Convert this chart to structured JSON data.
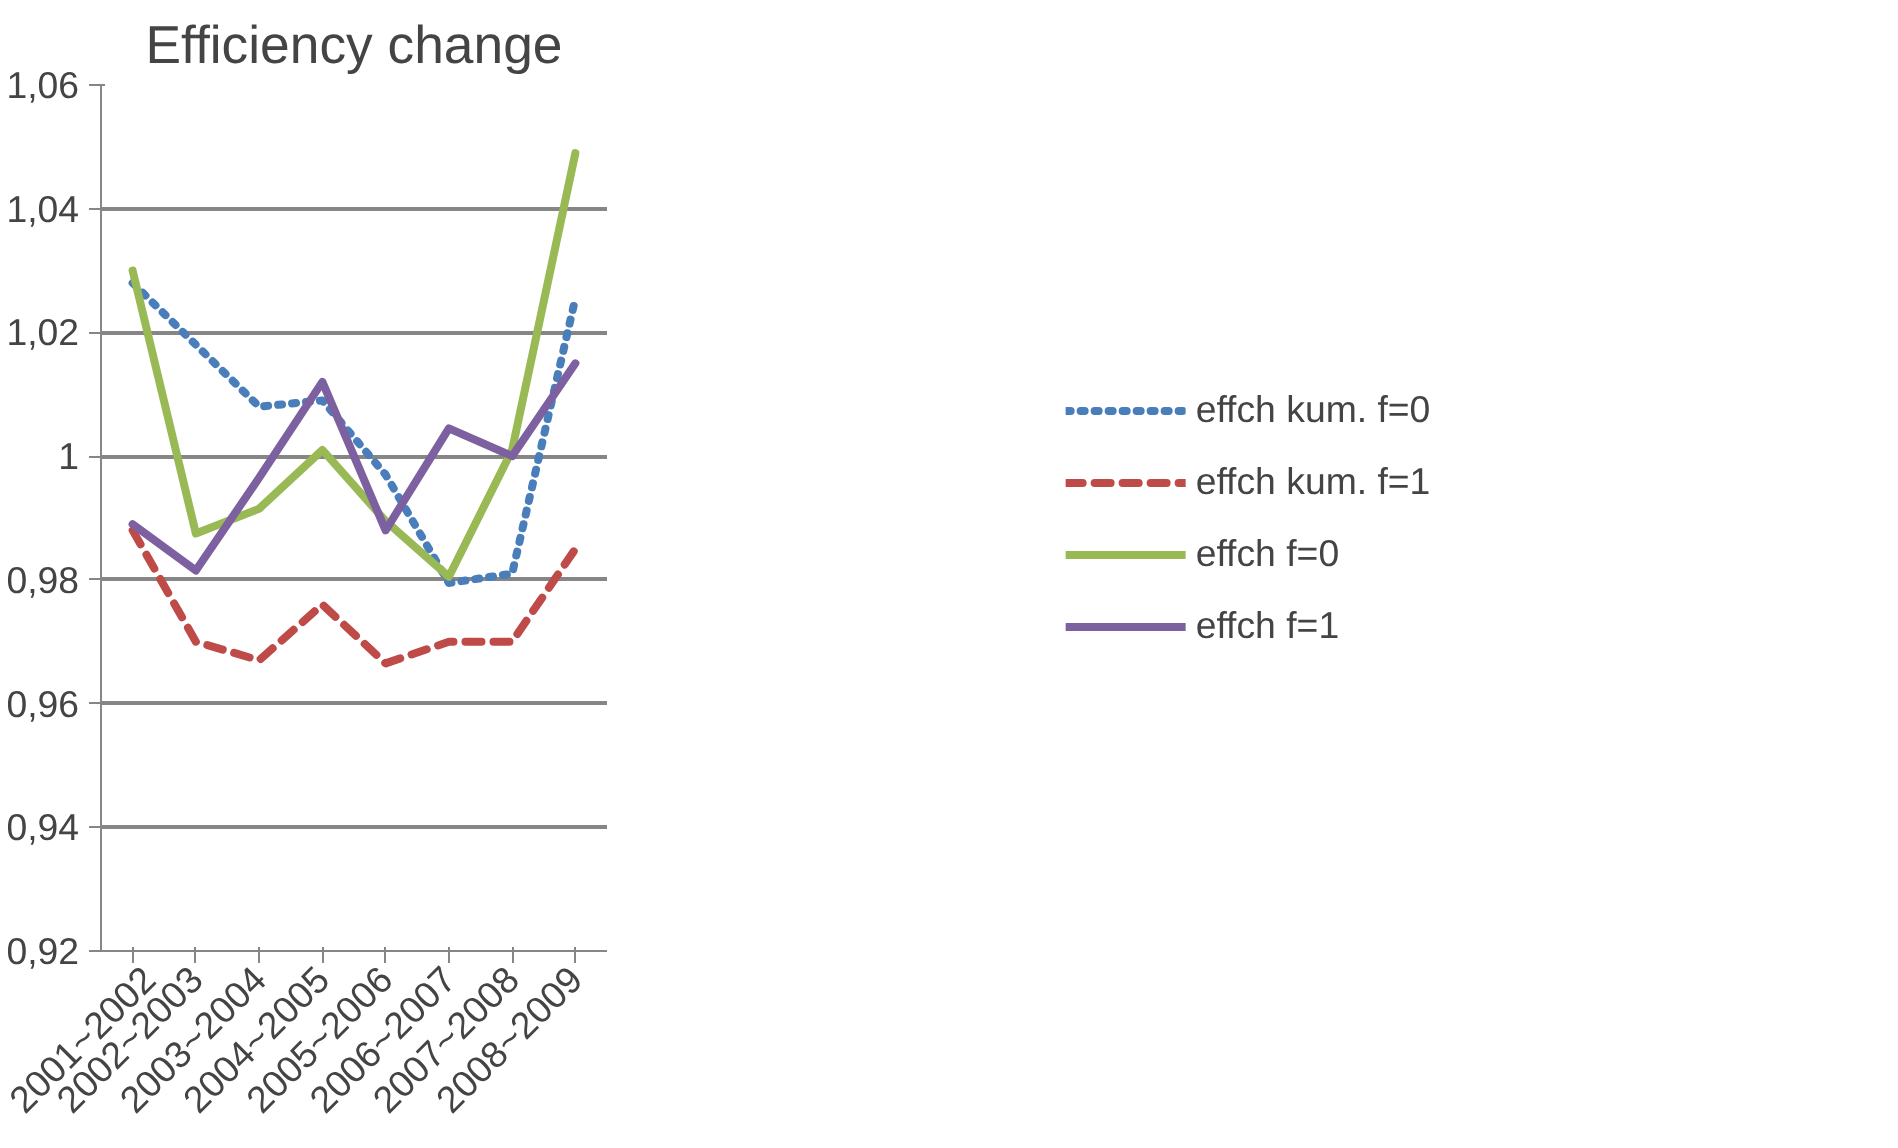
{
  "chart_data": {
    "type": "line",
    "title": "Efficiency change",
    "categories": [
      "2001~2002",
      "2002~2003",
      "2003~2004",
      "2004~2005",
      "2005~2006",
      "2006~2007",
      "2007~2008",
      "2008~2009"
    ],
    "series": [
      {
        "name": "effch kum. f=0",
        "color": "#4a7ebb",
        "line_style": "dotted",
        "values": [
          1.028,
          1.018,
          1.008,
          1.009,
          0.997,
          0.9795,
          0.981,
          1.0255
        ]
      },
      {
        "name": "effch kum. f=1",
        "color": "#be4b48",
        "line_style": "dashed",
        "values": [
          0.988,
          0.97,
          0.967,
          0.976,
          0.9665,
          0.97,
          0.97,
          0.985
        ]
      },
      {
        "name": "effch f=0",
        "color": "#98b954",
        "line_style": "solid",
        "values": [
          1.03,
          0.9875,
          0.9915,
          1.001,
          0.9895,
          0.9805,
          1.001,
          1.049
        ]
      },
      {
        "name": "effch f=1",
        "color": "#7d60a0",
        "line_style": "solid",
        "values": [
          0.989,
          0.9815,
          0.9965,
          1.012,
          0.988,
          1.0045,
          1.0,
          1.015
        ]
      }
    ],
    "ylim": [
      0.92,
      1.06
    ],
    "yticks": [
      {
        "value": 0.92,
        "label": "0,92"
      },
      {
        "value": 0.94,
        "label": "0,94"
      },
      {
        "value": 0.96,
        "label": "0,96"
      },
      {
        "value": 0.98,
        "label": "0,98"
      },
      {
        "value": 1,
        "label": "1"
      },
      {
        "value": 1.02,
        "label": "1,02"
      },
      {
        "value": 1.04,
        "label": "1,04"
      },
      {
        "value": 1.06,
        "label": "1,06"
      }
    ],
    "grid": "y",
    "legend": "right",
    "marker": "none"
  }
}
